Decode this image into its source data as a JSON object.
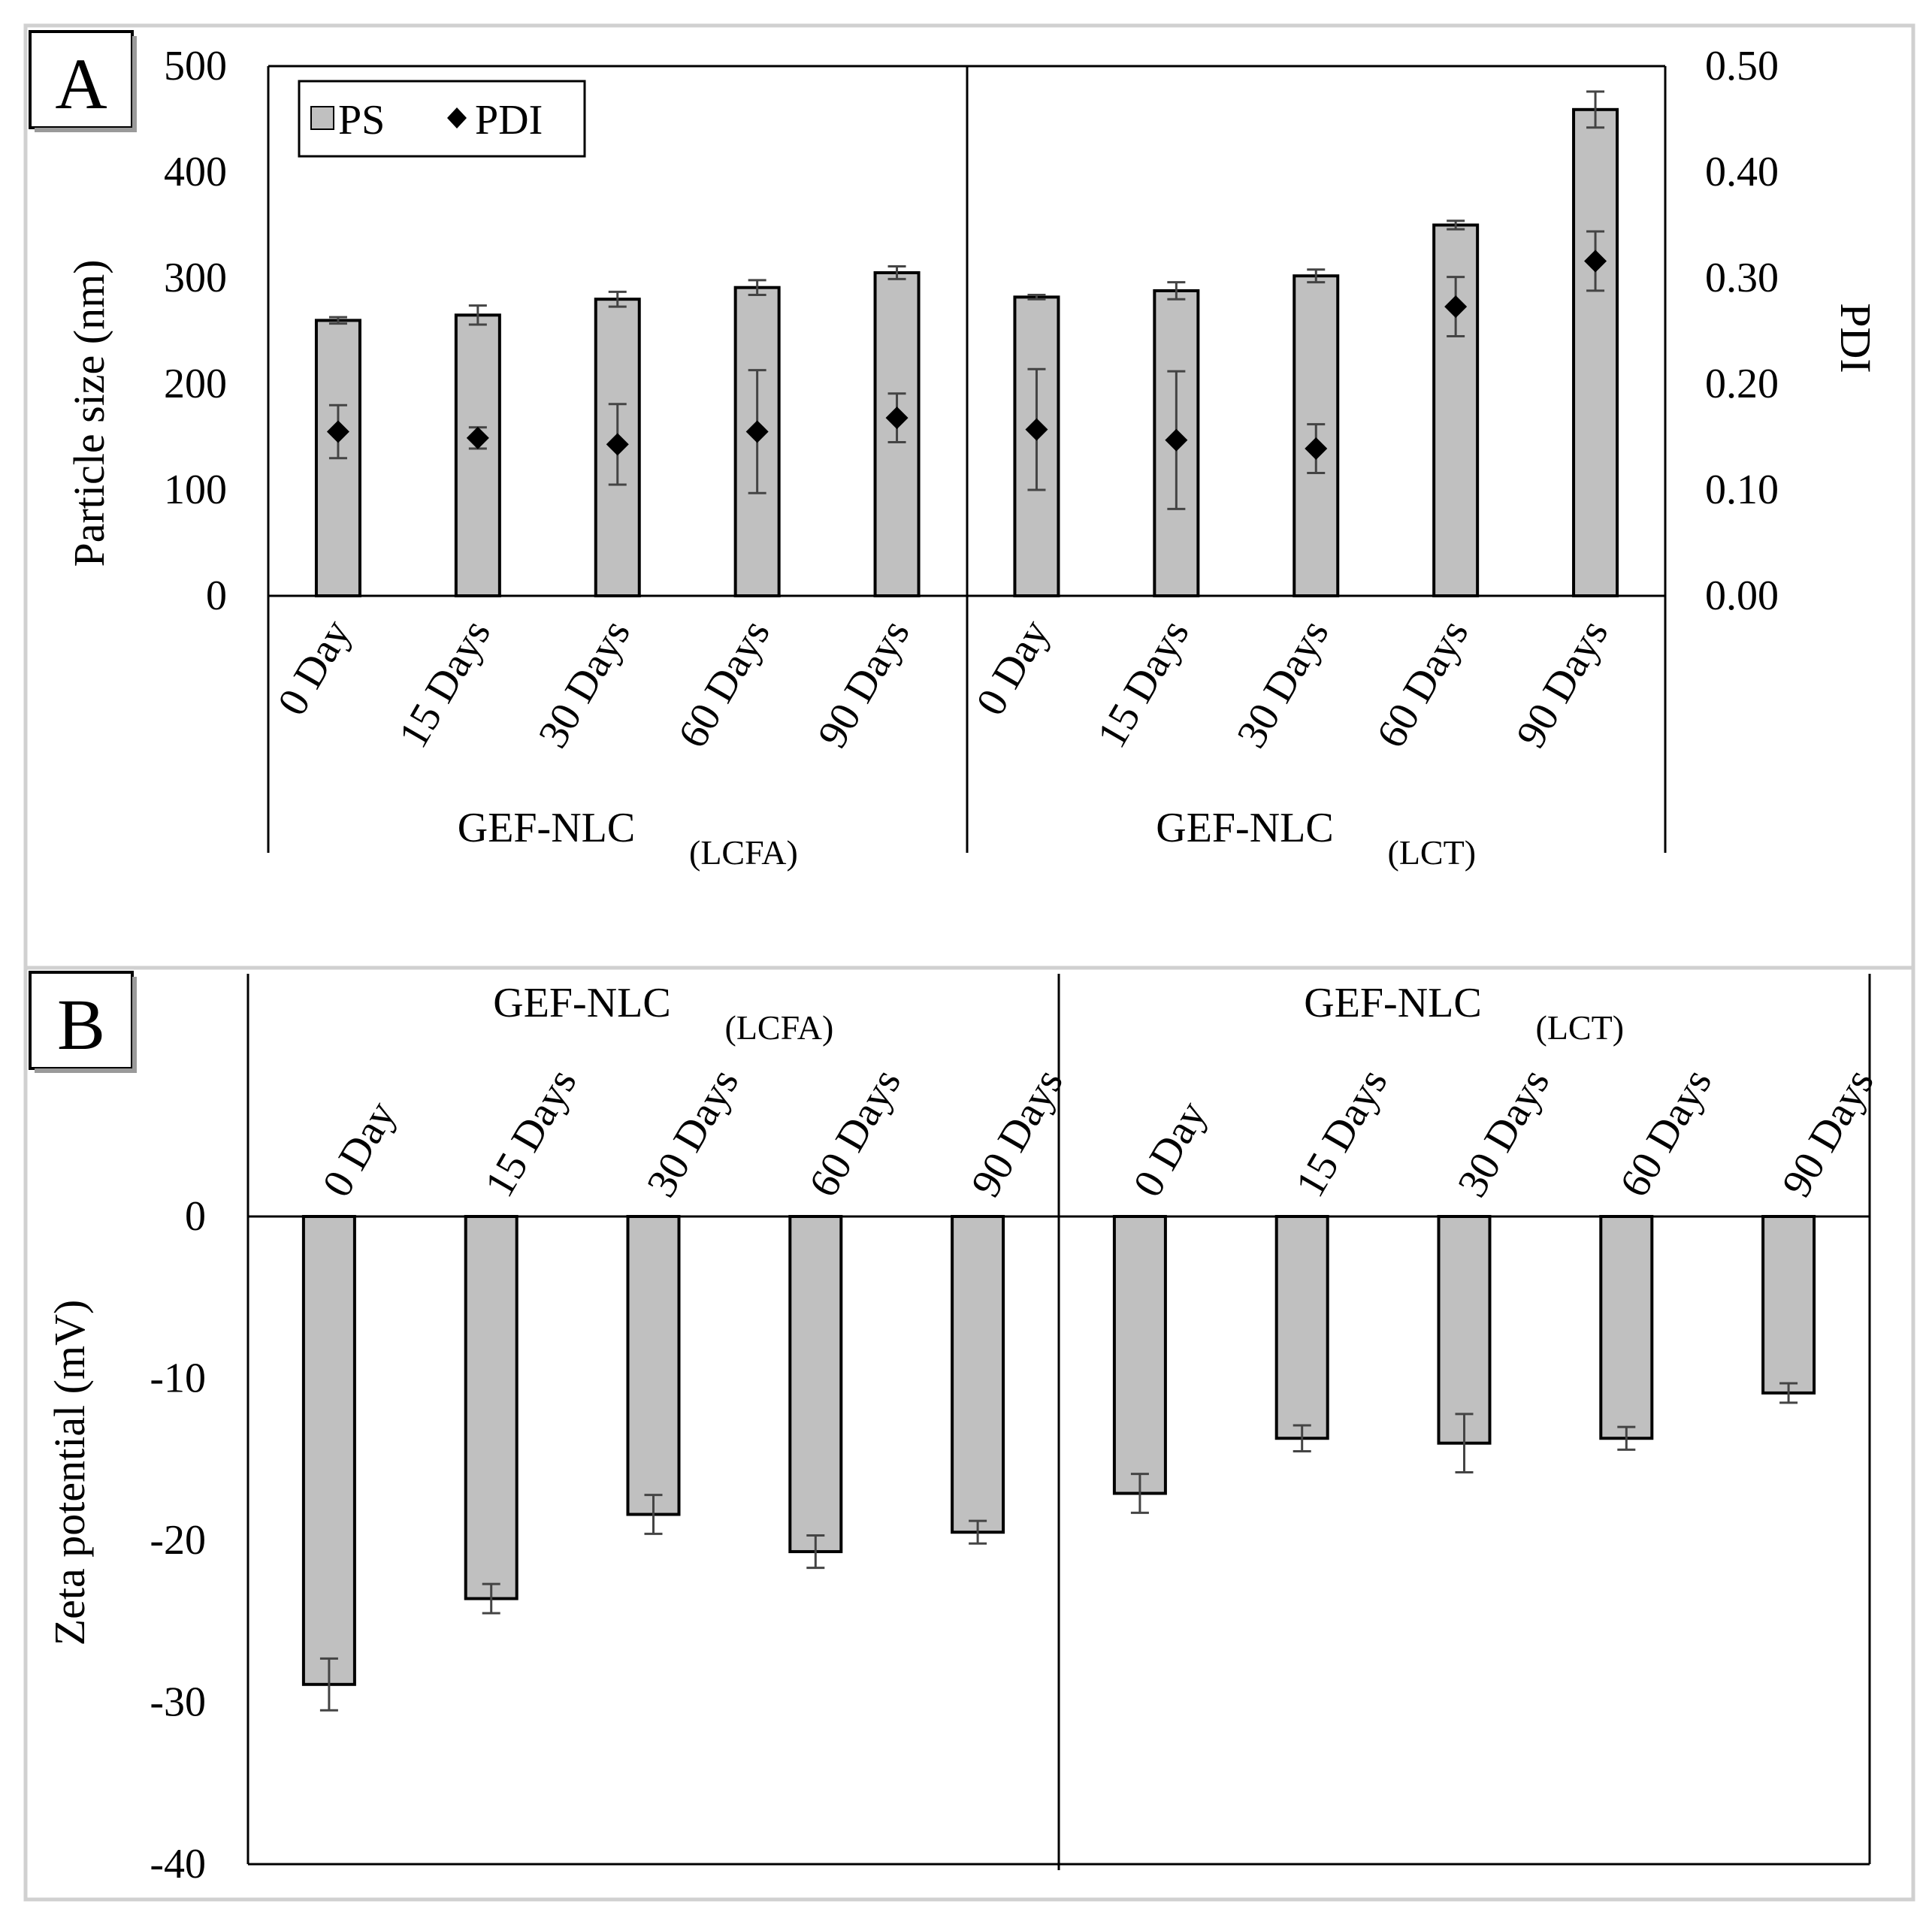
{
  "colors": {
    "bar_fill": "#c0c0c0",
    "bar_stroke": "#000000",
    "marker": "#000000",
    "error_bar": "#444444",
    "panel_border": "#d0d0d0"
  },
  "chart_data": [
    {
      "panel": "A",
      "type": "bar",
      "ylabel": "Particle size (nm)",
      "y2label": "PDI",
      "ylim": [
        0,
        500
      ],
      "y2lim": [
        0,
        0.5
      ],
      "yticks": [
        "0",
        "100",
        "200",
        "300",
        "400",
        "500"
      ],
      "y2ticks": [
        "0.00",
        "0.10",
        "0.20",
        "0.30",
        "0.40",
        "0.50"
      ],
      "legend": {
        "placement": "top-left",
        "entries": [
          "PS",
          "PDI"
        ]
      },
      "groups": [
        {
          "name": "GEF-NLC",
          "sub": "(LCFA)",
          "categories": [
            "0 Day",
            "15 Days",
            "30 Days",
            "60 Days",
            "90 Days"
          ]
        },
        {
          "name": "GEF-NLC",
          "sub": "(LCT)",
          "categories": [
            "0 Day",
            "15 Days",
            "30 Days",
            "60 Days",
            "90 Days"
          ]
        }
      ],
      "series": [
        {
          "name": "PS",
          "kind": "bar",
          "axis": "left",
          "values": [
            260,
            265,
            280,
            291,
            305,
            282,
            288,
            302,
            350,
            459
          ],
          "errors": [
            3,
            9,
            7,
            7,
            6,
            2,
            8,
            6,
            4,
            17
          ]
        },
        {
          "name": "PDI",
          "kind": "marker",
          "axis": "right",
          "values": [
            0.155,
            0.149,
            0.143,
            0.155,
            0.168,
            0.157,
            0.147,
            0.139,
            0.273,
            0.316
          ],
          "errors": [
            0.025,
            0.01,
            0.038,
            0.058,
            0.023,
            0.057,
            0.065,
            0.023,
            0.028,
            0.028
          ]
        }
      ]
    },
    {
      "panel": "B",
      "type": "bar",
      "ylabel": "Zeta potential (mV)",
      "ylim": [
        -40,
        0
      ],
      "yticks": [
        "0",
        "-10",
        "-20",
        "-30",
        "-40"
      ],
      "groups": [
        {
          "name": "GEF-NLC",
          "sub": "(LCFA)",
          "categories": [
            "0 Day",
            "15 Days",
            "30 Days",
            "60 Days",
            "90 Days"
          ]
        },
        {
          "name": "GEF-NLC",
          "sub": "(LCT)",
          "categories": [
            "0 Day",
            "15 Days",
            "30 Days",
            "60 Days",
            "90 Days"
          ]
        }
      ],
      "series": [
        {
          "name": "Zeta potential",
          "kind": "bar",
          "values": [
            -28.9,
            -23.6,
            -18.4,
            -20.7,
            -19.5,
            -17.1,
            -13.7,
            -14.0,
            -13.7,
            -10.9
          ],
          "errors": [
            1.6,
            0.9,
            1.2,
            1.0,
            0.7,
            1.2,
            0.8,
            1.8,
            0.7,
            0.6
          ]
        }
      ]
    }
  ]
}
